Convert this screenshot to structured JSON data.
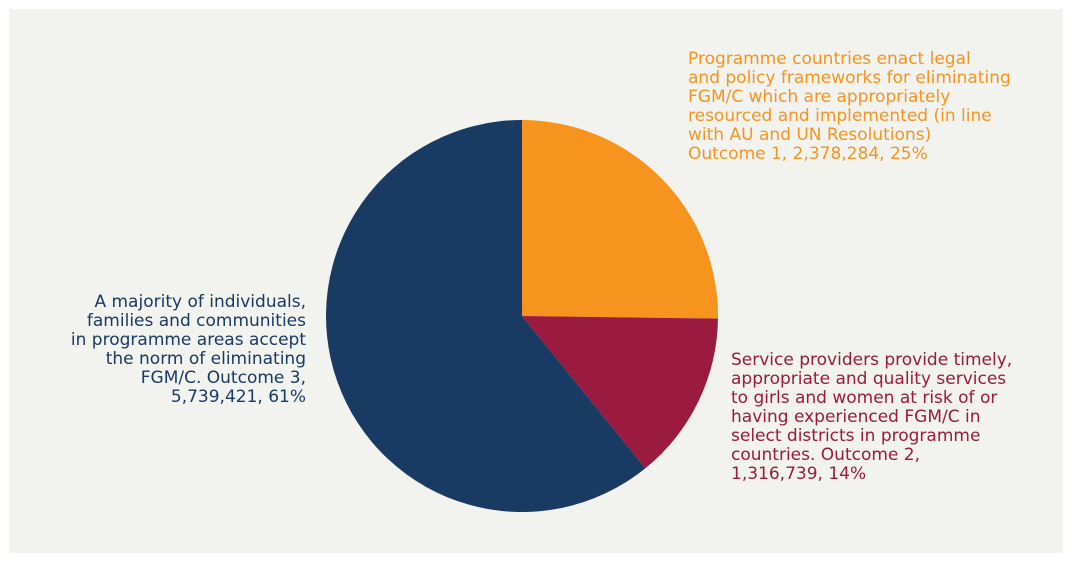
{
  "chart_data": {
    "type": "pie",
    "start_angle_deg": 0,
    "direction": "clockwise",
    "slices": [
      {
        "label_text": "Programme countries enact legal\nand policy frameworks for eliminating\nFGM/C which are appropriately\nresourced and implemented (in line\nwith AU and UN Resolutions)\nOutcome 1, 2,378,284, 25%",
        "value": 2378284,
        "percent": 25,
        "color": "#f7941d"
      },
      {
        "label_text": "Service providers provide timely,\nappropriate and quality services\nto girls and women at risk of or\nhaving experienced FGM/C in\nselect districts in programme\ncountries. Outcome 2,\n1,316,739, 14%",
        "value": 1316739,
        "percent": 14,
        "color": "#9b1b40"
      },
      {
        "label_text": "A majority of individuals,\nfamilies and communities\nin programme areas accept\nthe norm of eliminating\nFGM/C. Outcome 3,\n5,739,421, 61%",
        "value": 5739421,
        "percent": 61,
        "color": "#193a63"
      }
    ]
  }
}
